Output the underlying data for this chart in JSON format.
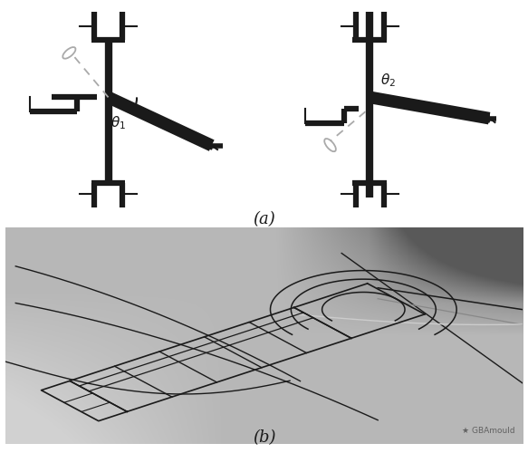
{
  "title_a": "(a)",
  "title_b": "(b)",
  "bg_color": "#ffffff",
  "line_color": "#1a1a1a",
  "dash_color": "#aaaaaa",
  "lw_thick": 4.5,
  "lw_thin": 1.5,
  "lw_dash": 1.3,
  "watermark": "★ GBAmould"
}
